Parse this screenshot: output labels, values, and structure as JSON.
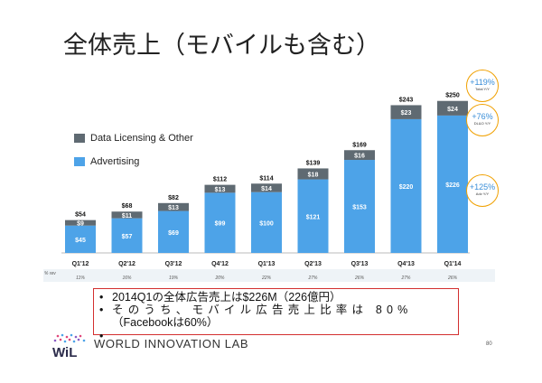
{
  "slide": {
    "title": "全体売上（モバイルも含む）",
    "page_number": "80",
    "footer_text": "WORLD INNOVATION LAB",
    "logo_text": "WiL",
    "pct_row_label": "% rev"
  },
  "legend": [
    {
      "label": "Data Licensing & Other",
      "color": "#5f6a72"
    },
    {
      "label": "Advertising",
      "color": "#4da3e8"
    }
  ],
  "callouts": [
    {
      "value": "+119%",
      "label": "Total Y/Y"
    },
    {
      "value": "+76%",
      "label": "DL&O Y/Y"
    },
    {
      "value": "+125%",
      "label": "Adv Y/Y"
    }
  ],
  "notes": {
    "line1": "2014Q1の全体広告売上は$226M（226億円）",
    "line2": "そのうち、モバイル広告売上比率は 80%",
    "line3": "（Facebookは60%）"
  },
  "chart_data": {
    "type": "bar",
    "stacked": true,
    "categories": [
      "Q1'12",
      "Q2'12",
      "Q3'12",
      "Q4'12",
      "Q1'13",
      "Q2'13",
      "Q3'13",
      "Q4'13",
      "Q1'14"
    ],
    "series": [
      {
        "name": "Advertising",
        "color": "#4da3e8",
        "values": [
          45,
          57,
          69,
          99,
          100,
          121,
          153,
          220,
          226
        ],
        "labels": [
          "$45",
          "$57",
          "$69",
          "$99",
          "$100",
          "$121",
          "$153",
          "$220",
          "$226"
        ]
      },
      {
        "name": "Data Licensing & Other",
        "color": "#5f6a72",
        "values": [
          9,
          11,
          13,
          13,
          14,
          18,
          16,
          23,
          24
        ],
        "labels": [
          "$9",
          "$11",
          "$13",
          "$13",
          "$14",
          "$18",
          "$16",
          "$23",
          "$24"
        ]
      }
    ],
    "totals": [
      "$54",
      "$68",
      "$82",
      "$112",
      "$114",
      "$139",
      "$169",
      "$243",
      "$250"
    ],
    "totals_values": [
      54,
      68,
      82,
      112,
      114,
      139,
      169,
      243,
      250
    ],
    "row_values": [
      "11%",
      "16%",
      "19%",
      "20%",
      "22%",
      "27%",
      "26%",
      "27%",
      "26%"
    ],
    "ylim": [
      0,
      260
    ],
    "grid": false,
    "legend_position": "top-left"
  }
}
